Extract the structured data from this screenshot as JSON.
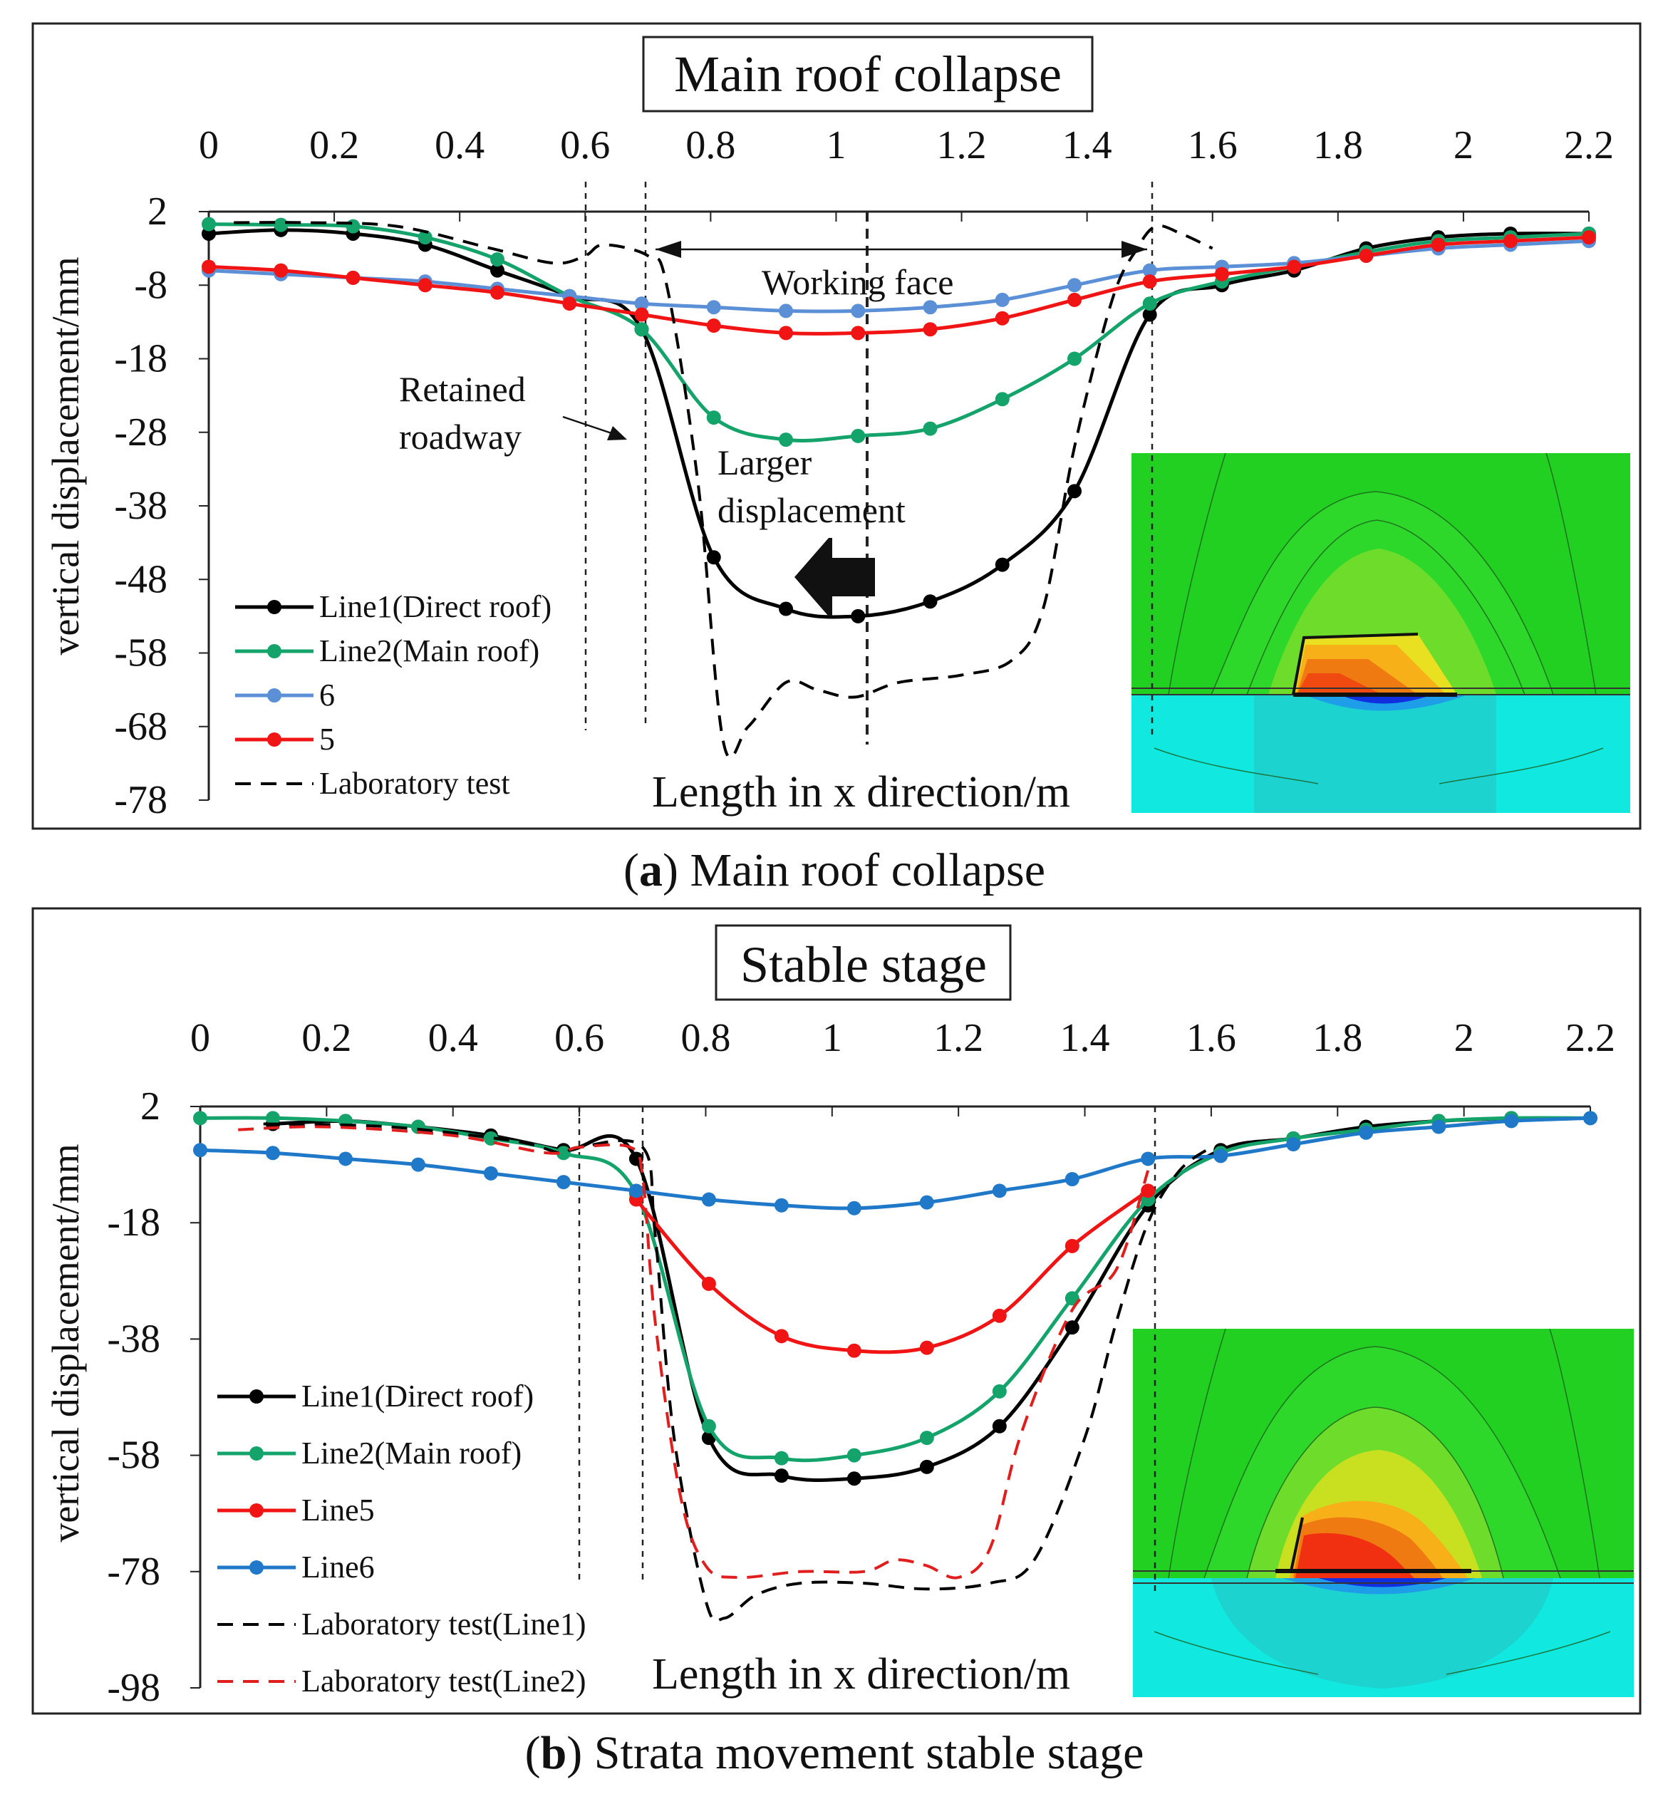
{
  "figure": {
    "panels": [
      {
        "title": "Main roof collapse",
        "caption_letter": "a",
        "caption_text": " Main roof collapse",
        "annotations": {
          "working_face": "Working face",
          "retained_line1": "Retained",
          "retained_line2": "roadway",
          "larger_line1": "Larger",
          "larger_line2": "displacement"
        }
      },
      {
        "title": "Stable stage",
        "caption_letter": "b",
        "caption_text": " Strata movement stable stage"
      }
    ]
  },
  "colors": {
    "line1": "#000000",
    "line2": "#14a36b",
    "line5": "#f01414",
    "line6_a": "#5b8fd6",
    "line6_b": "#1f78c8",
    "lab1": "#000000",
    "lab2": "#e01e1e",
    "contour_green": "#22d022",
    "contour_cyan": "#10e8e0",
    "contour_orange": "#f79a10",
    "contour_red": "#f03010",
    "contour_blue": "#1030e0"
  },
  "chart_data": [
    {
      "type": "line",
      "title": "Main roof collapse",
      "xlabel": "Length in x direction/m",
      "ylabel": "vertical displacement/mm",
      "xlim": [
        0,
        2.2
      ],
      "ylim": [
        -78,
        2
      ],
      "xticks": [
        "0",
        "0.2",
        "0.4",
        "0.6",
        "0.8",
        "1",
        "1.2",
        "1.4",
        "1.6",
        "1.8",
        "2",
        "2.2"
      ],
      "yticks": [
        "2",
        "-8",
        "-18",
        "-28",
        "-38",
        "-48",
        "-58",
        "-68",
        "-78"
      ],
      "guides_x": [
        0.6,
        0.7,
        1.05,
        1.5
      ],
      "series": [
        {
          "name": "Line1(Direct roof)",
          "color": "#000000",
          "dash": false,
          "markers": true,
          "x": [
            0,
            0.115,
            0.23,
            0.345,
            0.46,
            0.575,
            0.69,
            0.805,
            0.92,
            1.035,
            1.15,
            1.265,
            1.38,
            1.5,
            1.615,
            1.73,
            1.845,
            1.96,
            2.075,
            2.2
          ],
          "y": [
            -1,
            -0.5,
            -1,
            -2.5,
            -6,
            -9.5,
            -14,
            -45,
            -52,
            -53,
            -51,
            -46,
            -36,
            -12,
            -8,
            -6,
            -3,
            -1.5,
            -1,
            -1
          ]
        },
        {
          "name": "Line2(Main roof)",
          "color": "#14a36b",
          "dash": false,
          "markers": true,
          "x": [
            0,
            0.115,
            0.23,
            0.345,
            0.46,
            0.575,
            0.69,
            0.805,
            0.92,
            1.035,
            1.15,
            1.265,
            1.38,
            1.5,
            1.615,
            1.73,
            1.845,
            1.96,
            2.075,
            2.2
          ],
          "y": [
            0.3,
            0.2,
            0,
            -1.5,
            -4.5,
            -9.5,
            -14,
            -26,
            -29,
            -28.5,
            -27.5,
            -23.5,
            -18,
            -10.5,
            -7.5,
            -5.5,
            -3.5,
            -2,
            -1.5,
            -1
          ]
        },
        {
          "name": "6",
          "color": "#5b8fd6",
          "dash": false,
          "markers": true,
          "x": [
            0,
            0.115,
            0.23,
            0.345,
            0.46,
            0.575,
            0.69,
            0.805,
            0.92,
            1.035,
            1.15,
            1.265,
            1.38,
            1.5,
            1.615,
            1.73,
            1.845,
            1.96,
            2.075,
            2.2
          ],
          "y": [
            -6,
            -6.5,
            -7,
            -7.5,
            -8.5,
            -9.5,
            -10.5,
            -11,
            -11.5,
            -11.5,
            -11,
            -10,
            -8,
            -6,
            -5.5,
            -5,
            -4,
            -3,
            -2.5,
            -2
          ]
        },
        {
          "name": "5",
          "color": "#f01414",
          "dash": false,
          "markers": true,
          "x": [
            0,
            0.115,
            0.23,
            0.345,
            0.46,
            0.575,
            0.69,
            0.805,
            0.92,
            1.035,
            1.15,
            1.265,
            1.38,
            1.5,
            1.615,
            1.73,
            1.845,
            1.96,
            2.075,
            2.2
          ],
          "y": [
            -5.5,
            -6,
            -7,
            -8,
            -9,
            -10.5,
            -12,
            -13.5,
            -14.5,
            -14.5,
            -14,
            -12.5,
            -10,
            -7.5,
            -6.5,
            -5.5,
            -4,
            -2.5,
            -2,
            -1.5
          ]
        },
        {
          "name": "Laboratory test",
          "color": "#000000",
          "dash": true,
          "markers": false,
          "x": [
            0.04,
            0.15,
            0.3,
            0.45,
            0.55,
            0.6,
            0.63,
            0.7,
            0.73,
            0.78,
            0.82,
            0.86,
            0.92,
            0.97,
            1.03,
            1.1,
            1.2,
            1.28,
            1.33,
            1.38,
            1.44,
            1.48,
            1.51,
            1.55,
            1.6
          ],
          "y": [
            0.5,
            0.5,
            0,
            -3,
            -5,
            -4,
            -2.5,
            -4,
            -8,
            -35,
            -70,
            -68,
            -62,
            -63,
            -64,
            -62,
            -61,
            -59,
            -52,
            -30,
            -10,
            -3,
            0,
            -1,
            -3
          ]
        }
      ]
    },
    {
      "type": "line",
      "title": "Stable stage",
      "xlabel": "Length in x direction/m",
      "ylabel": "vertical displacement/mm",
      "xlim": [
        0,
        2.2
      ],
      "ylim": [
        -98,
        2
      ],
      "xticks": [
        "0",
        "0.2",
        "0.4",
        "0.6",
        "0.8",
        "1",
        "1.2",
        "1.4",
        "1.6",
        "1.8",
        "2",
        "2.2"
      ],
      "yticks": [
        "2",
        "-18",
        "-38",
        "-58",
        "-78",
        "-98"
      ],
      "guides_x": [
        0.6,
        0.7,
        1.5
      ],
      "series": [
        {
          "name": "Line1(Direct roof)",
          "color": "#000000",
          "dash": false,
          "markers": true,
          "x": [
            0.115,
            0.23,
            0.345,
            0.46,
            0.575,
            0.69,
            0.805,
            0.92,
            1.035,
            1.15,
            1.265,
            1.38,
            1.5,
            1.615,
            1.73,
            1.845,
            1.96,
            2.075
          ],
          "y": [
            -1,
            -0.5,
            -1.5,
            -3,
            -5.5,
            -7,
            -55,
            -61.5,
            -62,
            -60,
            -53,
            -36,
            -15,
            -5.5,
            -3.5,
            -1.5,
            -0.5,
            0
          ]
        },
        {
          "name": "Line2(Main roof)",
          "color": "#14a36b",
          "dash": false,
          "markers": true,
          "x": [
            0,
            0.115,
            0.23,
            0.345,
            0.46,
            0.575,
            0.69,
            0.805,
            0.92,
            1.035,
            1.15,
            1.265,
            1.38,
            1.5,
            1.615,
            1.73,
            1.845,
            1.96,
            2.075,
            2.2
          ],
          "y": [
            0,
            0,
            -0.5,
            -1.5,
            -3.5,
            -6,
            -13,
            -53,
            -58.5,
            -58,
            -55,
            -47,
            -31,
            -14,
            -6,
            -3.5,
            -2,
            -0.5,
            0,
            0
          ]
        },
        {
          "name": "Line5",
          "color": "#f01414",
          "dash": false,
          "markers": true,
          "x": [
            0.69,
            0.805,
            0.92,
            1.035,
            1.15,
            1.265,
            1.38,
            1.5
          ],
          "y": [
            -14,
            -28.5,
            -37.5,
            -40,
            -39.5,
            -34,
            -22,
            -12.5
          ]
        },
        {
          "name": "Line6",
          "color": "#1f78c8",
          "dash": false,
          "markers": true,
          "x": [
            0,
            0.115,
            0.23,
            0.345,
            0.46,
            0.575,
            0.69,
            0.805,
            0.92,
            1.035,
            1.15,
            1.265,
            1.38,
            1.5,
            1.615,
            1.73,
            1.845,
            1.96,
            2.075,
            2.2
          ],
          "y": [
            -5.5,
            -6,
            -7,
            -8,
            -9.5,
            -11,
            -12.5,
            -14,
            -15,
            -15.5,
            -14.5,
            -12.5,
            -10.5,
            -7,
            -6.5,
            -4.5,
            -2.5,
            -1.5,
            -0.5,
            0
          ]
        },
        {
          "name": "Laboratory test(Line1)",
          "color": "#000000",
          "dash": true,
          "markers": false,
          "x": [
            0.1,
            0.3,
            0.5,
            0.57,
            0.6,
            0.7,
            0.72,
            0.75,
            0.8,
            0.83,
            0.88,
            0.95,
            1.05,
            1.15,
            1.25,
            1.32,
            1.4,
            1.45,
            1.5,
            1.55,
            1.6
          ],
          "y": [
            -1,
            -1.5,
            -4,
            -6,
            -5,
            -5,
            -20,
            -55,
            -83,
            -86,
            -82,
            -80,
            -80,
            -81,
            -80,
            -76,
            -55,
            -35,
            -18,
            -9,
            -5
          ]
        },
        {
          "name": "Laboratory test(Line2)",
          "color": "#e01e1e",
          "dash": true,
          "markers": false,
          "x": [
            0.06,
            0.2,
            0.4,
            0.55,
            0.6,
            0.68,
            0.7,
            0.72,
            0.76,
            0.8,
            0.85,
            0.95,
            1.05,
            1.1,
            1.15,
            1.2,
            1.25,
            1.3,
            1.38,
            1.45,
            1.5
          ],
          "y": [
            -2,
            -1.5,
            -3,
            -6,
            -5,
            -5,
            -10,
            -35,
            -65,
            -77,
            -79,
            -78,
            -78,
            -76,
            -77,
            -79,
            -74,
            -54,
            -33,
            -26,
            -9
          ]
        }
      ]
    }
  ]
}
